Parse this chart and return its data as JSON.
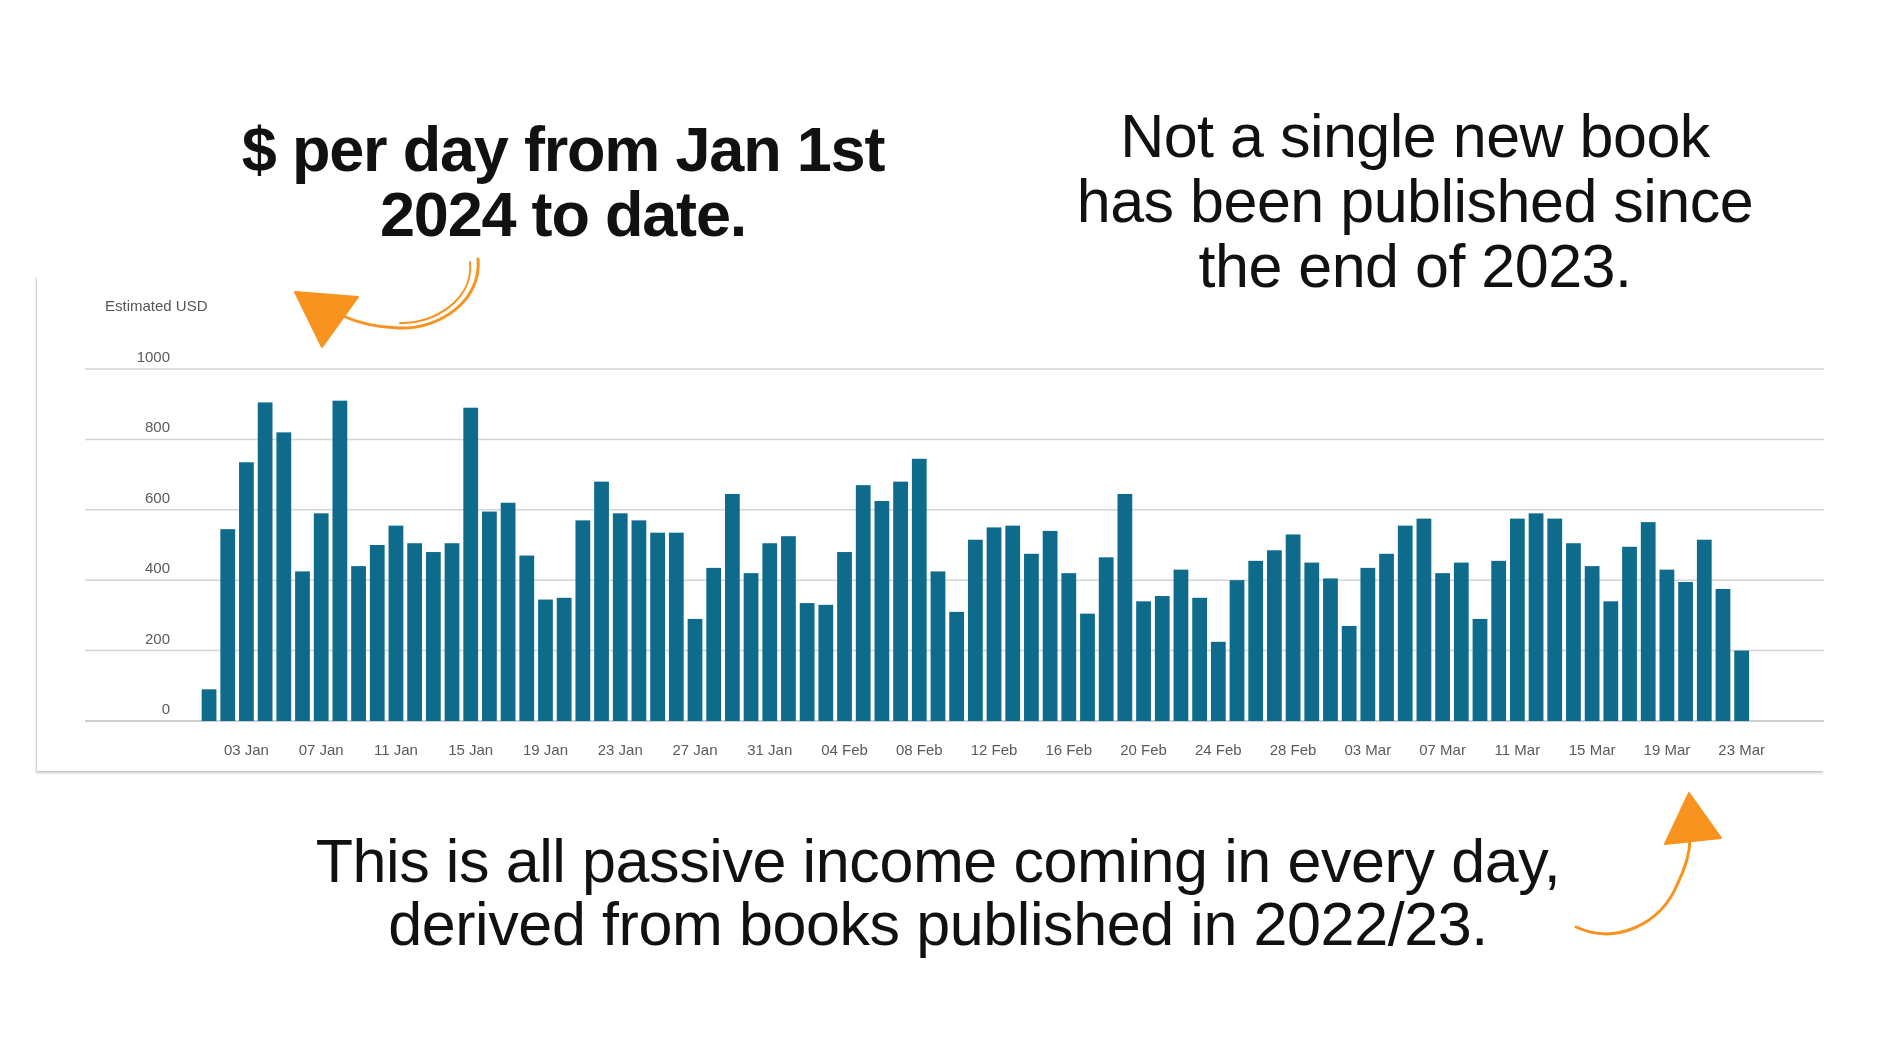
{
  "chart_data": {
    "type": "bar",
    "title": "$ per day from Jan 1st 2024 to date.",
    "ylabel": "Estimated USD",
    "annotations": [
      "Not a single new book has been published since the end of 2023.",
      "This is all passive income coming in every day, derived from books published in 2022/23."
    ],
    "categories": [
      null,
      null,
      "03 Jan",
      null,
      null,
      null,
      "07 Jan",
      null,
      null,
      null,
      "11 Jan",
      null,
      null,
      null,
      "15 Jan",
      null,
      null,
      null,
      "19 Jan",
      null,
      null,
      null,
      "23 Jan",
      null,
      null,
      null,
      "27 Jan",
      null,
      null,
      null,
      "31 Jan",
      null,
      null,
      null,
      "04 Feb",
      null,
      null,
      null,
      "08 Feb",
      null,
      null,
      null,
      "12 Feb",
      null,
      null,
      null,
      "16 Feb",
      null,
      null,
      null,
      "20 Feb",
      null,
      null,
      null,
      "24 Feb",
      null,
      null,
      null,
      "28 Feb",
      null,
      null,
      null,
      "03 Mar",
      null,
      null,
      null,
      "07 Mar",
      null,
      null,
      null,
      "11 Mar",
      null,
      null,
      null,
      "15 Mar",
      null,
      null,
      null,
      "19 Mar",
      null,
      null,
      null,
      "23 Mar"
    ],
    "values": [
      90,
      545,
      735,
      905,
      820,
      425,
      590,
      910,
      440,
      500,
      555,
      505,
      480,
      505,
      890,
      595,
      620,
      470,
      345,
      350,
      570,
      680,
      590,
      570,
      535,
      535,
      290,
      435,
      645,
      420,
      505,
      525,
      335,
      330,
      480,
      670,
      625,
      680,
      745,
      425,
      310,
      515,
      550,
      555,
      475,
      540,
      420,
      305,
      465,
      645,
      340,
      355,
      430,
      350,
      225,
      400,
      455,
      485,
      530,
      450,
      405,
      270,
      435,
      475,
      555,
      575,
      420,
      450,
      290,
      455,
      575,
      590,
      575,
      505,
      440,
      340,
      495,
      565,
      430,
      395,
      515,
      375,
      200
    ],
    "color": "#0e6b8c",
    "ylim": [
      0,
      1000
    ],
    "yticks": [
      0,
      200,
      400,
      600,
      800,
      1000
    ],
    "grid": "y"
  }
}
